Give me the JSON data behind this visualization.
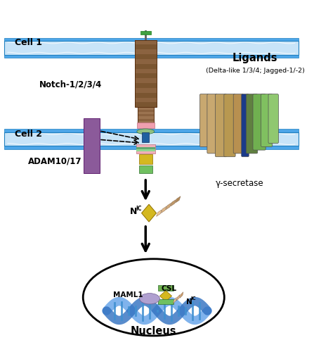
{
  "cell1_label": "Cell 1",
  "cell2_label": "Cell 2",
  "notch_label": "Notch-1/2/3/4",
  "ligands_label": "Ligands",
  "ligands_sub": "(Delta-like 1/3/4; Jagged-1/-2)",
  "adam_label": "ADAM10/17",
  "gsec_label": "γ-secretase",
  "maml1_label": "MAML1",
  "csl_label": "CSL",
  "nucleus_label": "Nucleus",
  "bg_color": "#ffffff",
  "mem_blue": "#4da6e8",
  "mem_inner": "#c8e4f8",
  "notch_brown1": "#8B6340",
  "notch_brown2": "#7a5530",
  "notch_brown3": "#9B7350",
  "notch_brown4": "#8a6240",
  "notch_pink": "#f0a0b0",
  "notch_green": "#90c080",
  "adam_purple": "#8B5A9A",
  "adam_purple_edge": "#602070",
  "tm_blue": "#2060a0",
  "ic_pink": "#f0b0b8",
  "ic_green1": "#60a870",
  "ic_green2": "#90d890",
  "ic_yellow": "#d4b820",
  "ic_green3": "#70c060",
  "nic_yellow": "#d4b820",
  "nic_green": "#70b050",
  "maml_lavender": "#b0a0d0",
  "dna_blue1": "#60a0e8",
  "dna_blue2": "#3070c0",
  "dna_link": "#4090d0",
  "gs_colors": [
    "#c8a870",
    "#c8a870",
    "#c0a060",
    "#b89850",
    "#b89050",
    "#1a3a8a",
    "#608040",
    "#70b050",
    "#80c060",
    "#90c870"
  ],
  "gs_widths": [
    10,
    12,
    14,
    14,
    12,
    8,
    14,
    16,
    14,
    12
  ],
  "gs_x_offs": [
    -38,
    -26,
    -13,
    0,
    13,
    23,
    33,
    44,
    55,
    65
  ],
  "gs_heights": [
    75,
    85,
    90,
    90,
    85,
    90,
    85,
    80,
    75,
    70
  ],
  "ank_colors": [
    "#f0c898",
    "#e0b888",
    "#d0a878",
    "#c09868",
    "#b08858"
  ],
  "ank_colors2": [
    "#f0c898",
    "#e0b080",
    "#d0a070"
  ]
}
